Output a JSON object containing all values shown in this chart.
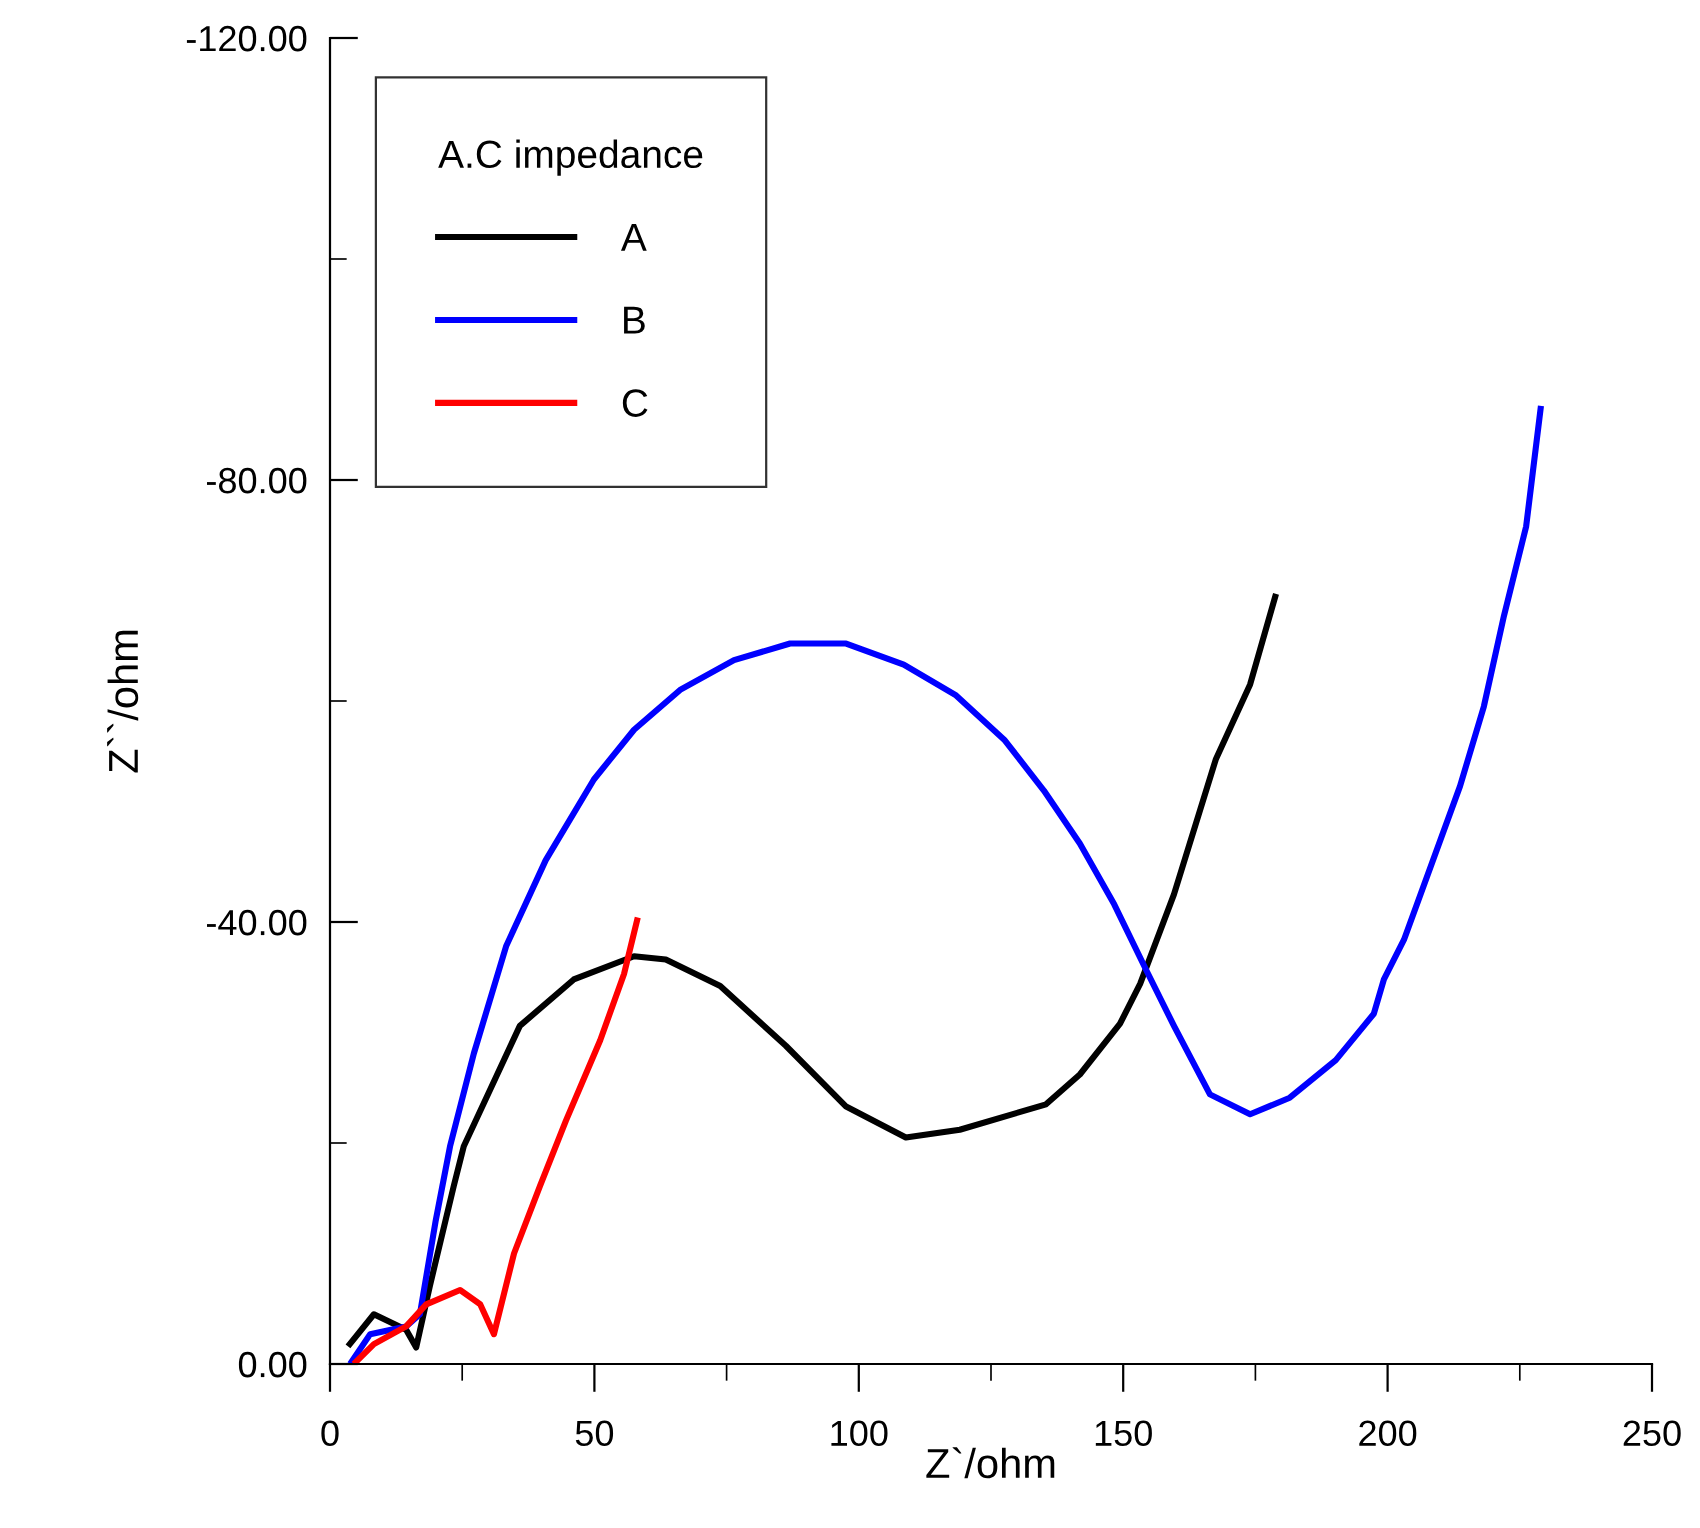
{
  "chart_data": {
    "type": "line",
    "xlabel": "Z`/ohm",
    "ylabel": "Z``/ohm",
    "legend_title": "A.C impedance",
    "legend": "top left",
    "grid": false,
    "marker": "none",
    "line_style": "solid",
    "xlim": [
      0,
      250
    ],
    "ylim": [
      0,
      -120
    ],
    "xticks": [
      0,
      {
        "value": 25,
        "label": null
      },
      50,
      {
        "value": 75,
        "label": null
      },
      100,
      {
        "value": 125,
        "label": null
      },
      150,
      {
        "value": 175,
        "label": null
      },
      200,
      {
        "value": 225,
        "label": null
      },
      250
    ],
    "yticks": [
      {
        "value": 0,
        "label": "0.00"
      },
      {
        "value": -20,
        "label": null
      },
      {
        "value": -40,
        "label": "-40.00"
      },
      {
        "value": -60,
        "label": null
      },
      {
        "value": -80,
        "label": "-80.00"
      },
      {
        "value": -100,
        "label": null
      },
      {
        "value": -120,
        "label": "-120.00"
      }
    ],
    "series": [
      {
        "name": "A",
        "color": "#000000",
        "x": [
          3.4,
          8.3,
          14.4,
          16.3,
          18.9,
          23.4,
          25.3,
          35.9,
          46.1,
          57.5,
          63.5,
          73.8,
          86.2,
          97.6,
          108.9,
          119.1,
          135.4,
          141.8,
          149.4,
          153.2,
          159.6,
          167.5,
          174,
          178.9
        ],
        "values": [
          -1.6,
          -4.5,
          -3.1,
          -1.5,
          -7.1,
          -16.1,
          -19.7,
          -30.6,
          -34.8,
          -36.9,
          -36.6,
          -34.2,
          -28.8,
          -23.3,
          -20.5,
          -21.2,
          -23.5,
          -26.2,
          -30.8,
          -34.4,
          -42.5,
          -54.7,
          -61.5,
          -69.7
        ]
      },
      {
        "name": "B",
        "color": "#0000ff",
        "x": [
          3.8,
          7.6,
          14.4,
          17,
          20,
          22.7,
          27.2,
          33.3,
          40.8,
          49.9,
          57.5,
          66.2,
          76.4,
          87,
          97.6,
          108.5,
          118.4,
          127.5,
          135,
          141.8,
          148.3,
          154.3,
          159.6,
          166.4,
          174,
          181.5,
          190.2,
          197.4,
          199.3,
          203.1,
          213.7,
          218.2,
          222,
          226.2,
          229
        ],
        "values": [
          0,
          -2.7,
          -3.4,
          -4.5,
          -13,
          -19.7,
          -28.1,
          -37.8,
          -45.6,
          -52.9,
          -57.4,
          -61,
          -63.7,
          -65.2,
          -65.2,
          -63.3,
          -60.5,
          -56.5,
          -51.9,
          -47.1,
          -41.6,
          -35.7,
          -30.6,
          -24.4,
          -22.6,
          -24.1,
          -27.5,
          -31.7,
          -34.8,
          -38.4,
          -52.3,
          -59.5,
          -67.7,
          -75.8,
          -86.7
        ]
      },
      {
        "name": "C",
        "color": "#ff0000",
        "x": [
          4.5,
          8.3,
          14.4,
          18.2,
          24.6,
          28.4,
          31,
          34.8,
          39.7,
          44.6,
          51.1,
          55.6,
          58.2
        ],
        "values": [
          0,
          -1.8,
          -3.4,
          -5.4,
          -6.7,
          -5.4,
          -2.7,
          -10,
          -16.1,
          -22,
          -29.3,
          -35.3,
          -40.4
        ]
      }
    ]
  }
}
